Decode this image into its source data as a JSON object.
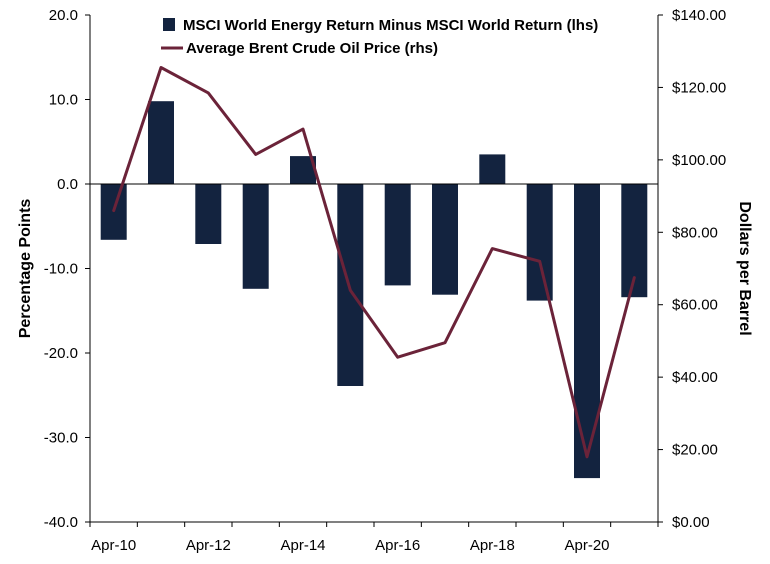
{
  "chart_data": {
    "type": "bar",
    "x": [
      "Apr-10",
      "Apr-11",
      "Apr-12",
      "Apr-13",
      "Apr-14",
      "Apr-15",
      "Apr-16",
      "Apr-17",
      "Apr-18",
      "Apr-19",
      "Apr-20",
      "Apr-21"
    ],
    "x_tick_labels": [
      "Apr-10",
      "Apr-12",
      "Apr-14",
      "Apr-16",
      "Apr-18",
      "Apr-20"
    ],
    "series": [
      {
        "name": "MSCI World Energy Return Minus MSCI World Return (lhs)",
        "type": "bar",
        "axis": "left",
        "color": "#13233f",
        "values": [
          -6.6,
          9.8,
          -7.1,
          -12.4,
          3.3,
          -23.9,
          -12.0,
          -13.1,
          3.5,
          -13.8,
          -34.8,
          -13.4
        ]
      },
      {
        "name": "Average Brent Crude Oil Price (rhs)",
        "type": "line",
        "axis": "right",
        "color": "#6b2339",
        "values": [
          86,
          125.5,
          118.5,
          101.5,
          108.5,
          64,
          45.5,
          49.5,
          75.5,
          72,
          18,
          67.5
        ]
      }
    ],
    "y_left": {
      "label": "Percentage Points",
      "lim": [
        -40,
        20
      ],
      "ticks": [
        20,
        10,
        0,
        -10,
        -20,
        -30,
        -40
      ],
      "tick_labels": [
        "20.0",
        "10.0",
        "0.0",
        "-10.0",
        "-20.0",
        "-30.0",
        "-40.0"
      ]
    },
    "y_right": {
      "label": "Dollars per Barrel",
      "lim": [
        0,
        140
      ],
      "ticks": [
        140,
        120,
        100,
        80,
        60,
        40,
        20,
        0
      ],
      "tick_labels": [
        "$140.00",
        "$120.00",
        "$100.00",
        "$80.00",
        "$60.00",
        "$40.00",
        "$20.00",
        "$0.00"
      ]
    },
    "legend_position": "top",
    "grid": false
  }
}
